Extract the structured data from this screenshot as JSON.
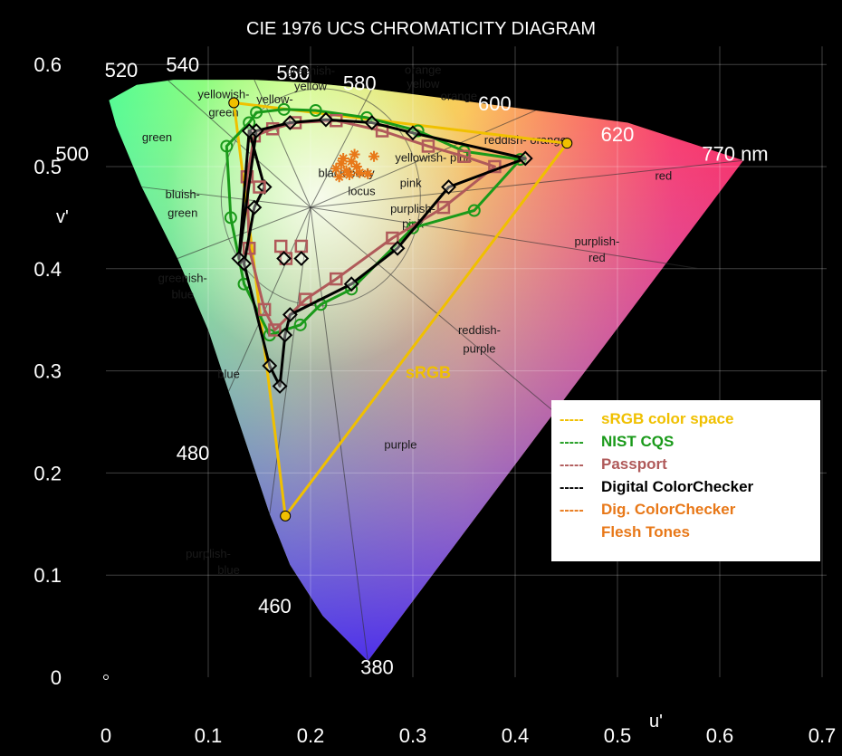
{
  "chart_data": {
    "type": "scatter",
    "title": "CIE 1976 UCS CHROMATICITY DIAGRAM",
    "xlabel": "u'",
    "ylabel": "v'",
    "xlim": [
      0,
      0.7
    ],
    "ylim": [
      0,
      0.6
    ],
    "x_ticks": [
      "0",
      "0.1",
      "0.2",
      "0.3",
      "0.4",
      "0.5",
      "0.6",
      "0.7"
    ],
    "y_ticks": [
      "0",
      "0.1",
      "0.2",
      "0.3",
      "0.4",
      "0.5",
      "0.6"
    ],
    "grid": true,
    "legend_position": "right",
    "spectral_locus": [
      [
        0.256,
        0.016
      ],
      [
        0.212,
        0.06
      ],
      [
        0.18,
        0.11
      ],
      [
        0.16,
        0.16
      ],
      [
        0.14,
        0.22
      ],
      [
        0.12,
        0.28
      ],
      [
        0.1,
        0.34
      ],
      [
        0.07,
        0.41
      ],
      [
        0.035,
        0.48
      ],
      [
        0.01,
        0.54
      ],
      [
        0.003,
        0.565
      ],
      [
        0.03,
        0.58
      ],
      [
        0.066,
        0.585
      ],
      [
        0.1,
        0.585
      ],
      [
        0.145,
        0.585
      ],
      [
        0.2,
        0.582
      ],
      [
        0.26,
        0.576
      ],
      [
        0.33,
        0.567
      ],
      [
        0.42,
        0.555
      ],
      [
        0.51,
        0.543
      ],
      [
        0.623,
        0.506
      ]
    ],
    "wavelength_labels": [
      {
        "text": "380",
        "u": 0.265,
        "v": 0.01
      },
      {
        "text": "460",
        "u": 0.165,
        "v": 0.07
      },
      {
        "text": "480",
        "u": 0.085,
        "v": 0.22
      },
      {
        "text": "500",
        "u": -0.033,
        "v": 0.513
      },
      {
        "text": "520",
        "u": 0.015,
        "v": 0.595
      },
      {
        "text": "540",
        "u": 0.075,
        "v": 0.6
      },
      {
        "text": "560",
        "u": 0.183,
        "v": 0.592
      },
      {
        "text": "580",
        "u": 0.248,
        "v": 0.582
      },
      {
        "text": "600",
        "u": 0.38,
        "v": 0.562
      },
      {
        "text": "620",
        "u": 0.5,
        "v": 0.532
      },
      {
        "text": "770 nm",
        "u": 0.615,
        "v": 0.513
      }
    ],
    "region_labels": [
      {
        "text": "green",
        "u": 0.05,
        "v": 0.525
      },
      {
        "text": "yellowish-",
        "u": 0.115,
        "v": 0.567
      },
      {
        "text": "green",
        "u": 0.115,
        "v": 0.549
      },
      {
        "text": "greenish-",
        "u": 0.2,
        "v": 0.59
      },
      {
        "text": "yellow",
        "u": 0.2,
        "v": 0.575
      },
      {
        "text": "yellow-",
        "u": 0.165,
        "v": 0.562
      },
      {
        "text": "orange",
        "u": 0.31,
        "v": 0.591
      },
      {
        "text": "yellow",
        "u": 0.31,
        "v": 0.577
      },
      {
        "text": "orange",
        "u": 0.345,
        "v": 0.565
      },
      {
        "text": "reddish- orange",
        "u": 0.41,
        "v": 0.522
      },
      {
        "text": "red",
        "u": 0.545,
        "v": 0.487
      },
      {
        "text": "yellowish- pink",
        "u": 0.32,
        "v": 0.505
      },
      {
        "text": "pink",
        "u": 0.298,
        "v": 0.48
      },
      {
        "text": "purplish-",
        "u": 0.3,
        "v": 0.455
      },
      {
        "text": "pink",
        "u": 0.3,
        "v": 0.44
      },
      {
        "text": "purplish-",
        "u": 0.48,
        "v": 0.423
      },
      {
        "text": "red",
        "u": 0.48,
        "v": 0.407
      },
      {
        "text": "reddish-",
        "u": 0.365,
        "v": 0.336
      },
      {
        "text": "purple",
        "u": 0.365,
        "v": 0.318
      },
      {
        "text": "purple",
        "u": 0.288,
        "v": 0.224
      },
      {
        "text": "bluish-",
        "u": 0.075,
        "v": 0.469
      },
      {
        "text": "green",
        "u": 0.075,
        "v": 0.451
      },
      {
        "text": "greenish-",
        "u": 0.075,
        "v": 0.387
      },
      {
        "text": "blue",
        "u": 0.075,
        "v": 0.371
      },
      {
        "text": "blue",
        "u": 0.12,
        "v": 0.293
      },
      {
        "text": "purplish-",
        "u": 0.1,
        "v": 0.117
      },
      {
        "text": "blue",
        "u": 0.12,
        "v": 0.101
      },
      {
        "text": "black body",
        "u": 0.235,
        "v": 0.49
      },
      {
        "text": "locus",
        "u": 0.25,
        "v": 0.472
      },
      {
        "text": "sRGB",
        "u": 0.315,
        "v": 0.293
      }
    ],
    "series": [
      {
        "name": "sRGB color space",
        "color": "#f0c000",
        "marker": "circle-filled",
        "closed": true,
        "u": [
          0.4507,
          0.125,
          0.1754
        ],
        "v": [
          0.5229,
          0.5625,
          0.1579
        ]
      },
      {
        "name": "NIST CQS",
        "color": "#1a9a1a",
        "marker": "circle",
        "closed": true,
        "u": [
          0.14,
          0.147,
          0.174,
          0.205,
          0.255,
          0.305,
          0.35,
          0.405,
          0.36,
          0.3,
          0.24,
          0.21,
          0.19,
          0.16,
          0.135,
          0.122,
          0.118
        ],
        "v": [
          0.543,
          0.553,
          0.556,
          0.555,
          0.548,
          0.535,
          0.515,
          0.507,
          0.457,
          0.44,
          0.38,
          0.365,
          0.345,
          0.335,
          0.385,
          0.45,
          0.52
        ]
      },
      {
        "name": "Passport",
        "color": "#b05a5a",
        "marker": "square",
        "closed": true,
        "u": [
          0.145,
          0.163,
          0.185,
          0.225,
          0.27,
          0.315,
          0.35,
          0.38,
          0.33,
          0.28,
          0.225,
          0.195,
          0.165,
          0.155,
          0.14,
          0.138
        ],
        "v": [
          0.53,
          0.537,
          0.543,
          0.545,
          0.535,
          0.52,
          0.51,
          0.5,
          0.46,
          0.43,
          0.39,
          0.37,
          0.34,
          0.36,
          0.42,
          0.49
        ]
      },
      {
        "name": "Digital ColorChecker",
        "color": "#000000",
        "marker": "diamond",
        "closed": true,
        "u": [
          0.13,
          0.147,
          0.18,
          0.215,
          0.26,
          0.3,
          0.41,
          0.335,
          0.285,
          0.24,
          0.18,
          0.175,
          0.17,
          0.16,
          0.135,
          0.145,
          0.155,
          0.14
        ],
        "v": [
          0.41,
          0.535,
          0.543,
          0.546,
          0.543,
          0.533,
          0.508,
          0.48,
          0.42,
          0.385,
          0.355,
          0.335,
          0.285,
          0.305,
          0.405,
          0.46,
          0.48,
          0.535
        ]
      },
      {
        "name": "Dig. ColorChecker Flesh Tones",
        "color": "#e87818",
        "marker": "star",
        "closed": false,
        "u": [
          0.225,
          0.23,
          0.235,
          0.24,
          0.245,
          0.228,
          0.238,
          0.248,
          0.232,
          0.243,
          0.262,
          0.256
        ],
        "v": [
          0.498,
          0.503,
          0.496,
          0.505,
          0.5,
          0.49,
          0.492,
          0.494,
          0.508,
          0.512,
          0.51,
          0.493
        ]
      }
    ],
    "reference_points": {
      "u": [
        0.15,
        0.171,
        0.176,
        0.191,
        0.174,
        0.191
      ],
      "v": [
        0.48,
        0.422,
        0.41,
        0.422,
        0.41,
        0.41
      ]
    },
    "legend": [
      {
        "dash": "-----",
        "label": "sRGB color space",
        "color": "#f0c000"
      },
      {
        "dash": "-----",
        "label": "NIST CQS",
        "color": "#1a9a1a"
      },
      {
        "dash": "-----",
        "label": "Passport",
        "color": "#b05a5a"
      },
      {
        "dash": "-----",
        "label": "Digital ColorChecker",
        "color": "#000000"
      },
      {
        "dash": "-----",
        "label": "Dig. ColorChecker",
        "color": "#e87818"
      },
      {
        "dash": "",
        "label": "Flesh Tones",
        "color": "#e87818"
      }
    ]
  }
}
